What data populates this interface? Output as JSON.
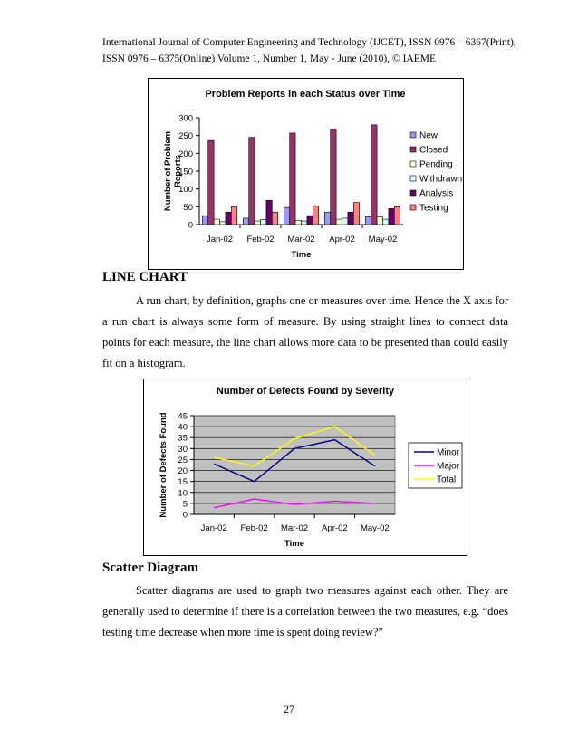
{
  "header": {
    "line1": "International Journal of Computer Engineering and Technology (IJCET), ISSN 0976 – 6367(Print),",
    "line2": "ISSN 0976 – 6375(Online) Volume 1, Number 1, May - June (2010), © IAEME"
  },
  "sections": {
    "line_chart_heading": "LINE CHART",
    "line_chart_para": "A run chart, by definition, graphs one or measures over time. Hence the X axis for a run chart is always some form of measure. By using straight lines to connect data points for each measure, the line chart allows more data to be presented than could easily fit on a histogram.",
    "scatter_heading": "Scatter Diagram",
    "scatter_para": "Scatter diagrams are used to graph two measures against each other. They are generally used to determine if there is a correlation between the two measures, e.g. “does testing time decrease when more time is spent doing review?”"
  },
  "page_number": "27",
  "chart_data": [
    {
      "type": "bar",
      "title": "Problem Reports in each Status over Time",
      "xlabel": "Time",
      "ylabel": "Number of Problem Reports",
      "ylim": [
        0,
        300
      ],
      "yticks": [
        "0",
        "50",
        "100",
        "150",
        "200",
        "250",
        "300"
      ],
      "categories": [
        "Jan-02",
        "Feb-02",
        "Mar-02",
        "Apr-02",
        "May-02"
      ],
      "legend_position": "right",
      "grid": false,
      "series": [
        {
          "name": "New",
          "color": "#9999ff",
          "values": [
            25,
            18,
            48,
            35,
            22
          ]
        },
        {
          "name": "Closed",
          "color": "#993366",
          "values": [
            236,
            245,
            257,
            268,
            280
          ]
        },
        {
          "name": "Pending",
          "color": "#ffffcc",
          "values": [
            15,
            10,
            12,
            15,
            22
          ]
        },
        {
          "name": "Withdrawn",
          "color": "#ccffff",
          "values": [
            8,
            14,
            10,
            18,
            15
          ]
        },
        {
          "name": "Analysis",
          "color": "#660066",
          "values": [
            35,
            68,
            25,
            35,
            45
          ]
        },
        {
          "name": "Testing",
          "color": "#ff8080",
          "values": [
            50,
            35,
            53,
            62,
            50
          ]
        }
      ]
    },
    {
      "type": "line",
      "title": "Number of Defects Found by Severity",
      "xlabel": "Time",
      "ylabel": "Number of Defects Found",
      "ylim": [
        0,
        45
      ],
      "yticks": [
        "0",
        "5",
        "10",
        "15",
        "20",
        "25",
        "30",
        "35",
        "40",
        "45"
      ],
      "categories": [
        "Jan-02",
        "Feb-02",
        "Mar-02",
        "Apr-02",
        "May-02"
      ],
      "legend_position": "right",
      "grid": true,
      "plot_background": "#c0c0c0",
      "series": [
        {
          "name": "Minor",
          "color": "#000080",
          "values": [
            23,
            15,
            30,
            34,
            22
          ]
        },
        {
          "name": "Major",
          "color": "#ff00ff",
          "values": [
            3,
            7,
            4.5,
            6,
            5
          ]
        },
        {
          "name": "Total",
          "color": "#ffff00",
          "values": [
            26,
            22,
            34.5,
            40,
            27
          ]
        }
      ]
    }
  ]
}
